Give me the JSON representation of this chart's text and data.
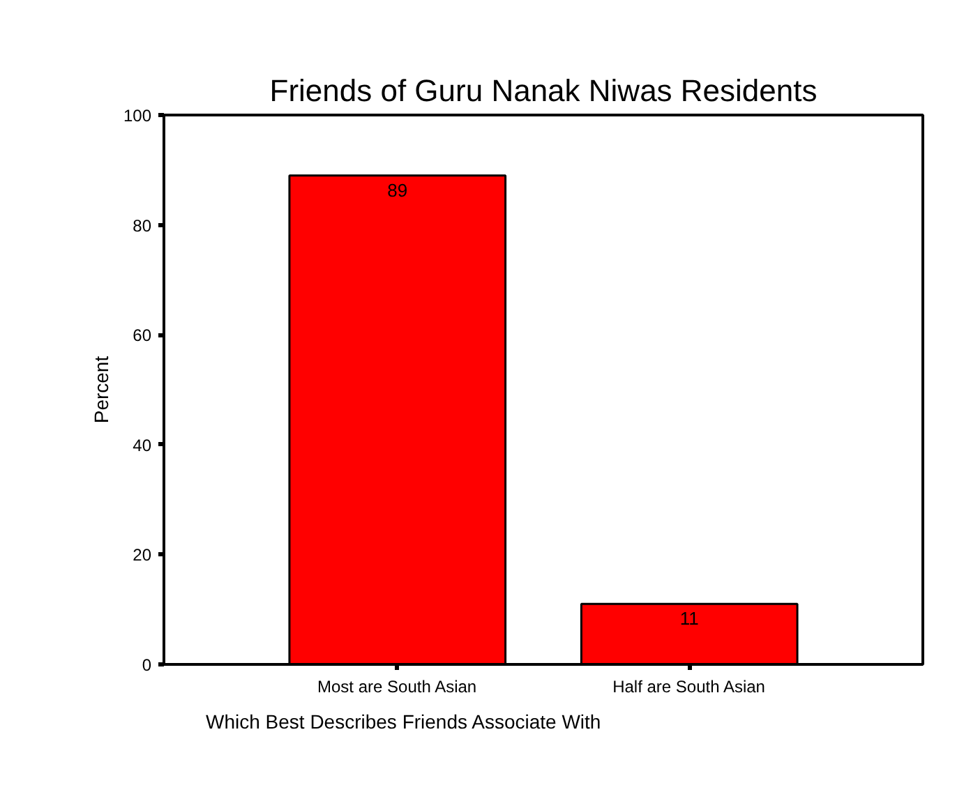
{
  "chart_data": {
    "type": "bar",
    "title": "Friends of Guru Nanak Niwas Residents",
    "xlabel": "Which Best Describes Friends Associate With",
    "ylabel": "Percent",
    "categories": [
      "Most are South Asian",
      "Half are South Asian"
    ],
    "values": [
      89,
      11
    ],
    "color": "#ff0000",
    "ylim": [
      0,
      100
    ],
    "yticks": [
      0,
      20,
      40,
      60,
      80,
      100
    ],
    "data_labels": true,
    "grid": false
  }
}
